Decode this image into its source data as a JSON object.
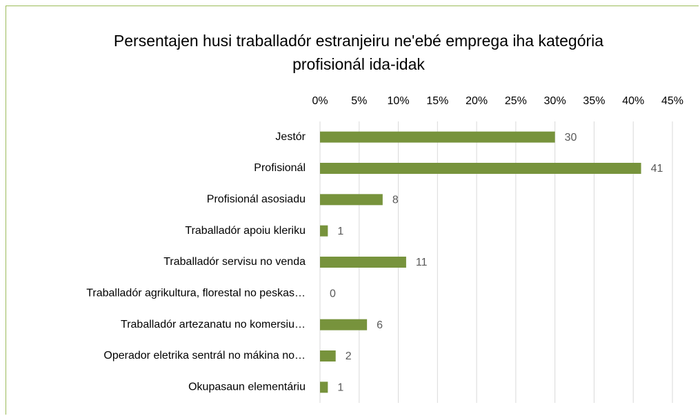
{
  "chart_data": {
    "type": "bar",
    "orientation": "horizontal",
    "title": "Persentajen husi traballadór estranjeiru ne'ebé emprega iha kategória profisionál ida-idak",
    "categories": [
      "Jestór",
      "Profisionál",
      "Profisionál asosiadu",
      "Traballadór apoiu kleriku",
      "Traballadór servisu no venda",
      "Traballadór agrikultura, florestal no peskas…",
      "Traballadór artezanatu no komersiu…",
      "Operador eletrika sentrál no mákina no…",
      "Okupasaun elementáriu"
    ],
    "values": [
      30,
      41,
      8,
      1,
      11,
      0,
      6,
      2,
      1
    ],
    "color": "#77933c",
    "xlim": [
      0,
      45
    ],
    "xticks": [
      {
        "value": 0,
        "label": "0%"
      },
      {
        "value": 5,
        "label": "5%"
      },
      {
        "value": 10,
        "label": "10%"
      },
      {
        "value": 15,
        "label": "15%"
      },
      {
        "value": 20,
        "label": "20%"
      },
      {
        "value": 25,
        "label": "25%"
      },
      {
        "value": 30,
        "label": "30%"
      },
      {
        "value": 35,
        "label": "35%"
      },
      {
        "value": 40,
        "label": "40%"
      },
      {
        "value": 45,
        "label": "45%"
      }
    ],
    "grid": true
  }
}
